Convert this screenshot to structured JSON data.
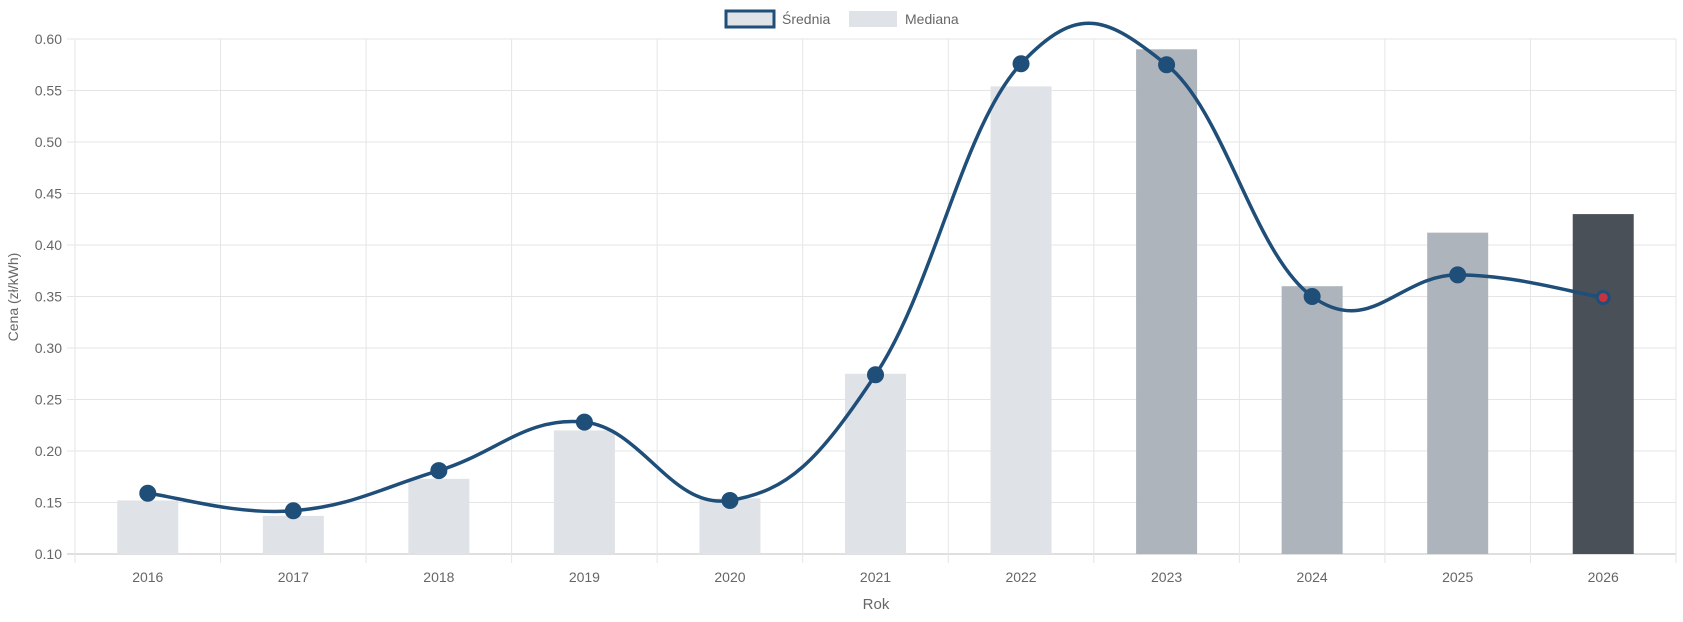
{
  "chart_data": {
    "type": "bar",
    "title": "",
    "xlabel": "Rok",
    "ylabel": "Cena (zł/kWh)",
    "ylim": [
      0.1,
      0.6
    ],
    "y_ticks": [
      "0.10",
      "0.15",
      "0.20",
      "0.25",
      "0.30",
      "0.35",
      "0.40",
      "0.45",
      "0.50",
      "0.55",
      "0.60"
    ],
    "grid": true,
    "legend_position": "top-center",
    "categories": [
      "2016",
      "2017",
      "2018",
      "2019",
      "2020",
      "2021",
      "2022",
      "2023",
      "2024",
      "2025",
      "2026"
    ],
    "series": [
      {
        "name": "Średnia",
        "type": "line",
        "smooth": true,
        "color": "#1f4e79",
        "values": [
          0.159,
          0.142,
          0.181,
          0.228,
          0.152,
          0.274,
          0.576,
          0.575,
          0.35,
          0.371,
          0.349
        ],
        "highlight_last_point_color": "#c8323c"
      },
      {
        "name": "Mediana",
        "type": "bar",
        "values": [
          0.152,
          0.137,
          0.173,
          0.22,
          0.154,
          0.275,
          0.554,
          0.59,
          0.36,
          0.412,
          0.43
        ],
        "colors": [
          "#dfe2e6",
          "#dfe2e6",
          "#dfe2e6",
          "#dfe2e6",
          "#dfe2e6",
          "#dfe2e6",
          "#dfe2e6",
          "#adb4bb",
          "#adb4bb",
          "#adb4bb",
          "#495057"
        ]
      }
    ]
  }
}
